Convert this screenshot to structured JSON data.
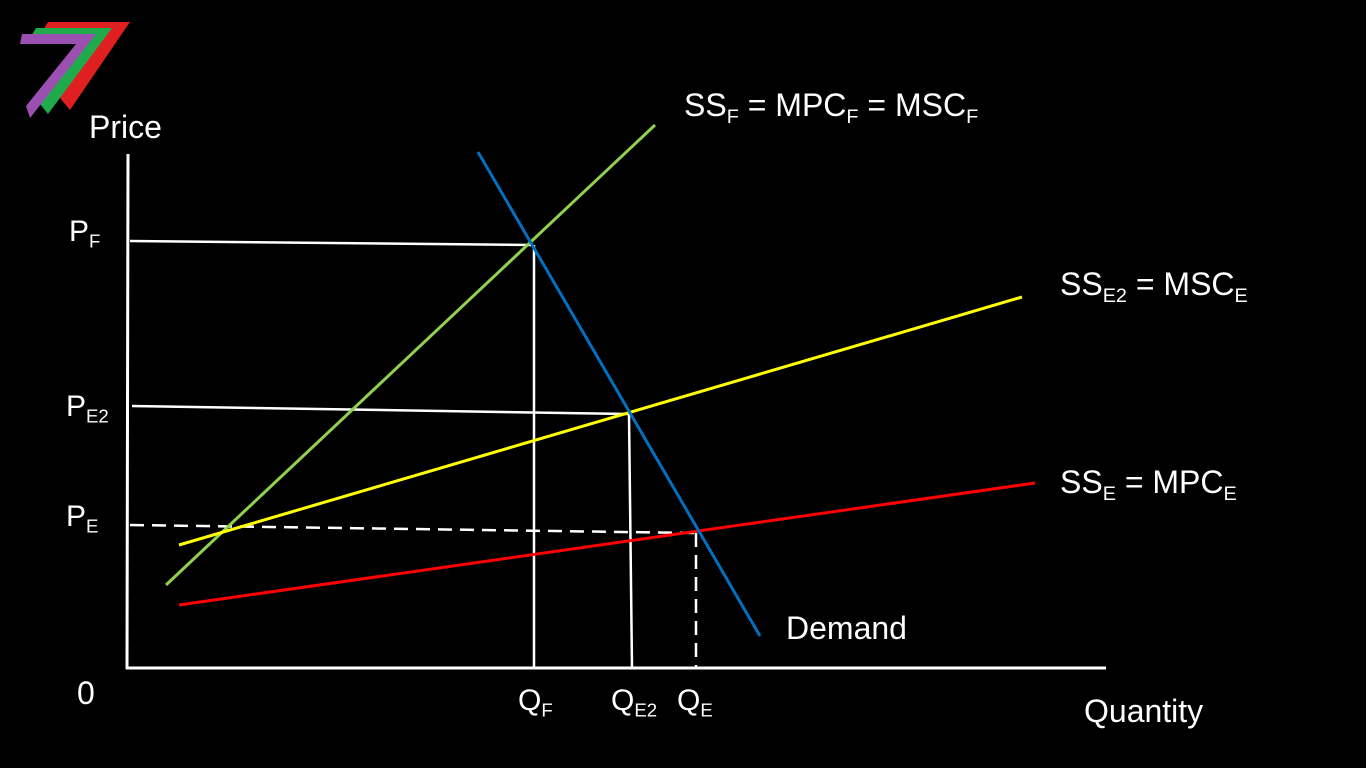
{
  "logo": {
    "colors": [
      "#9b4fb0",
      "#1faa4b",
      "#e02020"
    ]
  },
  "axes": {
    "y_title": "Price",
    "x_title": "Quantity",
    "origin": "0"
  },
  "price_labels": [
    {
      "main": "P",
      "sub": "F"
    },
    {
      "main": "P",
      "sub": "E2"
    },
    {
      "main": "P",
      "sub": "E"
    }
  ],
  "quantity_labels": [
    {
      "main": "Q",
      "sub": "F"
    },
    {
      "main": "Q",
      "sub": "E2"
    },
    {
      "main": "Q",
      "sub": "E"
    }
  ],
  "curves": {
    "ss_f": {
      "color": "#92d050",
      "parts": [
        {
          "main": "SS",
          "sub": "F"
        },
        {
          "main": " = MPC",
          "sub": "F"
        },
        {
          "main": " = MSC",
          "sub": "F"
        }
      ]
    },
    "ss_e2": {
      "color": "#ffff00",
      "parts": [
        {
          "main": "SS",
          "sub": "E2"
        },
        {
          "main": " = MSC",
          "sub": "E"
        }
      ]
    },
    "ss_e": {
      "color": "#ff0000",
      "parts": [
        {
          "main": "SS",
          "sub": "E"
        },
        {
          "main": " = MPC",
          "sub": "E"
        }
      ]
    },
    "demand": {
      "color": "#0070c0",
      "label": "Demand"
    }
  },
  "guide_color": "#ffffff"
}
